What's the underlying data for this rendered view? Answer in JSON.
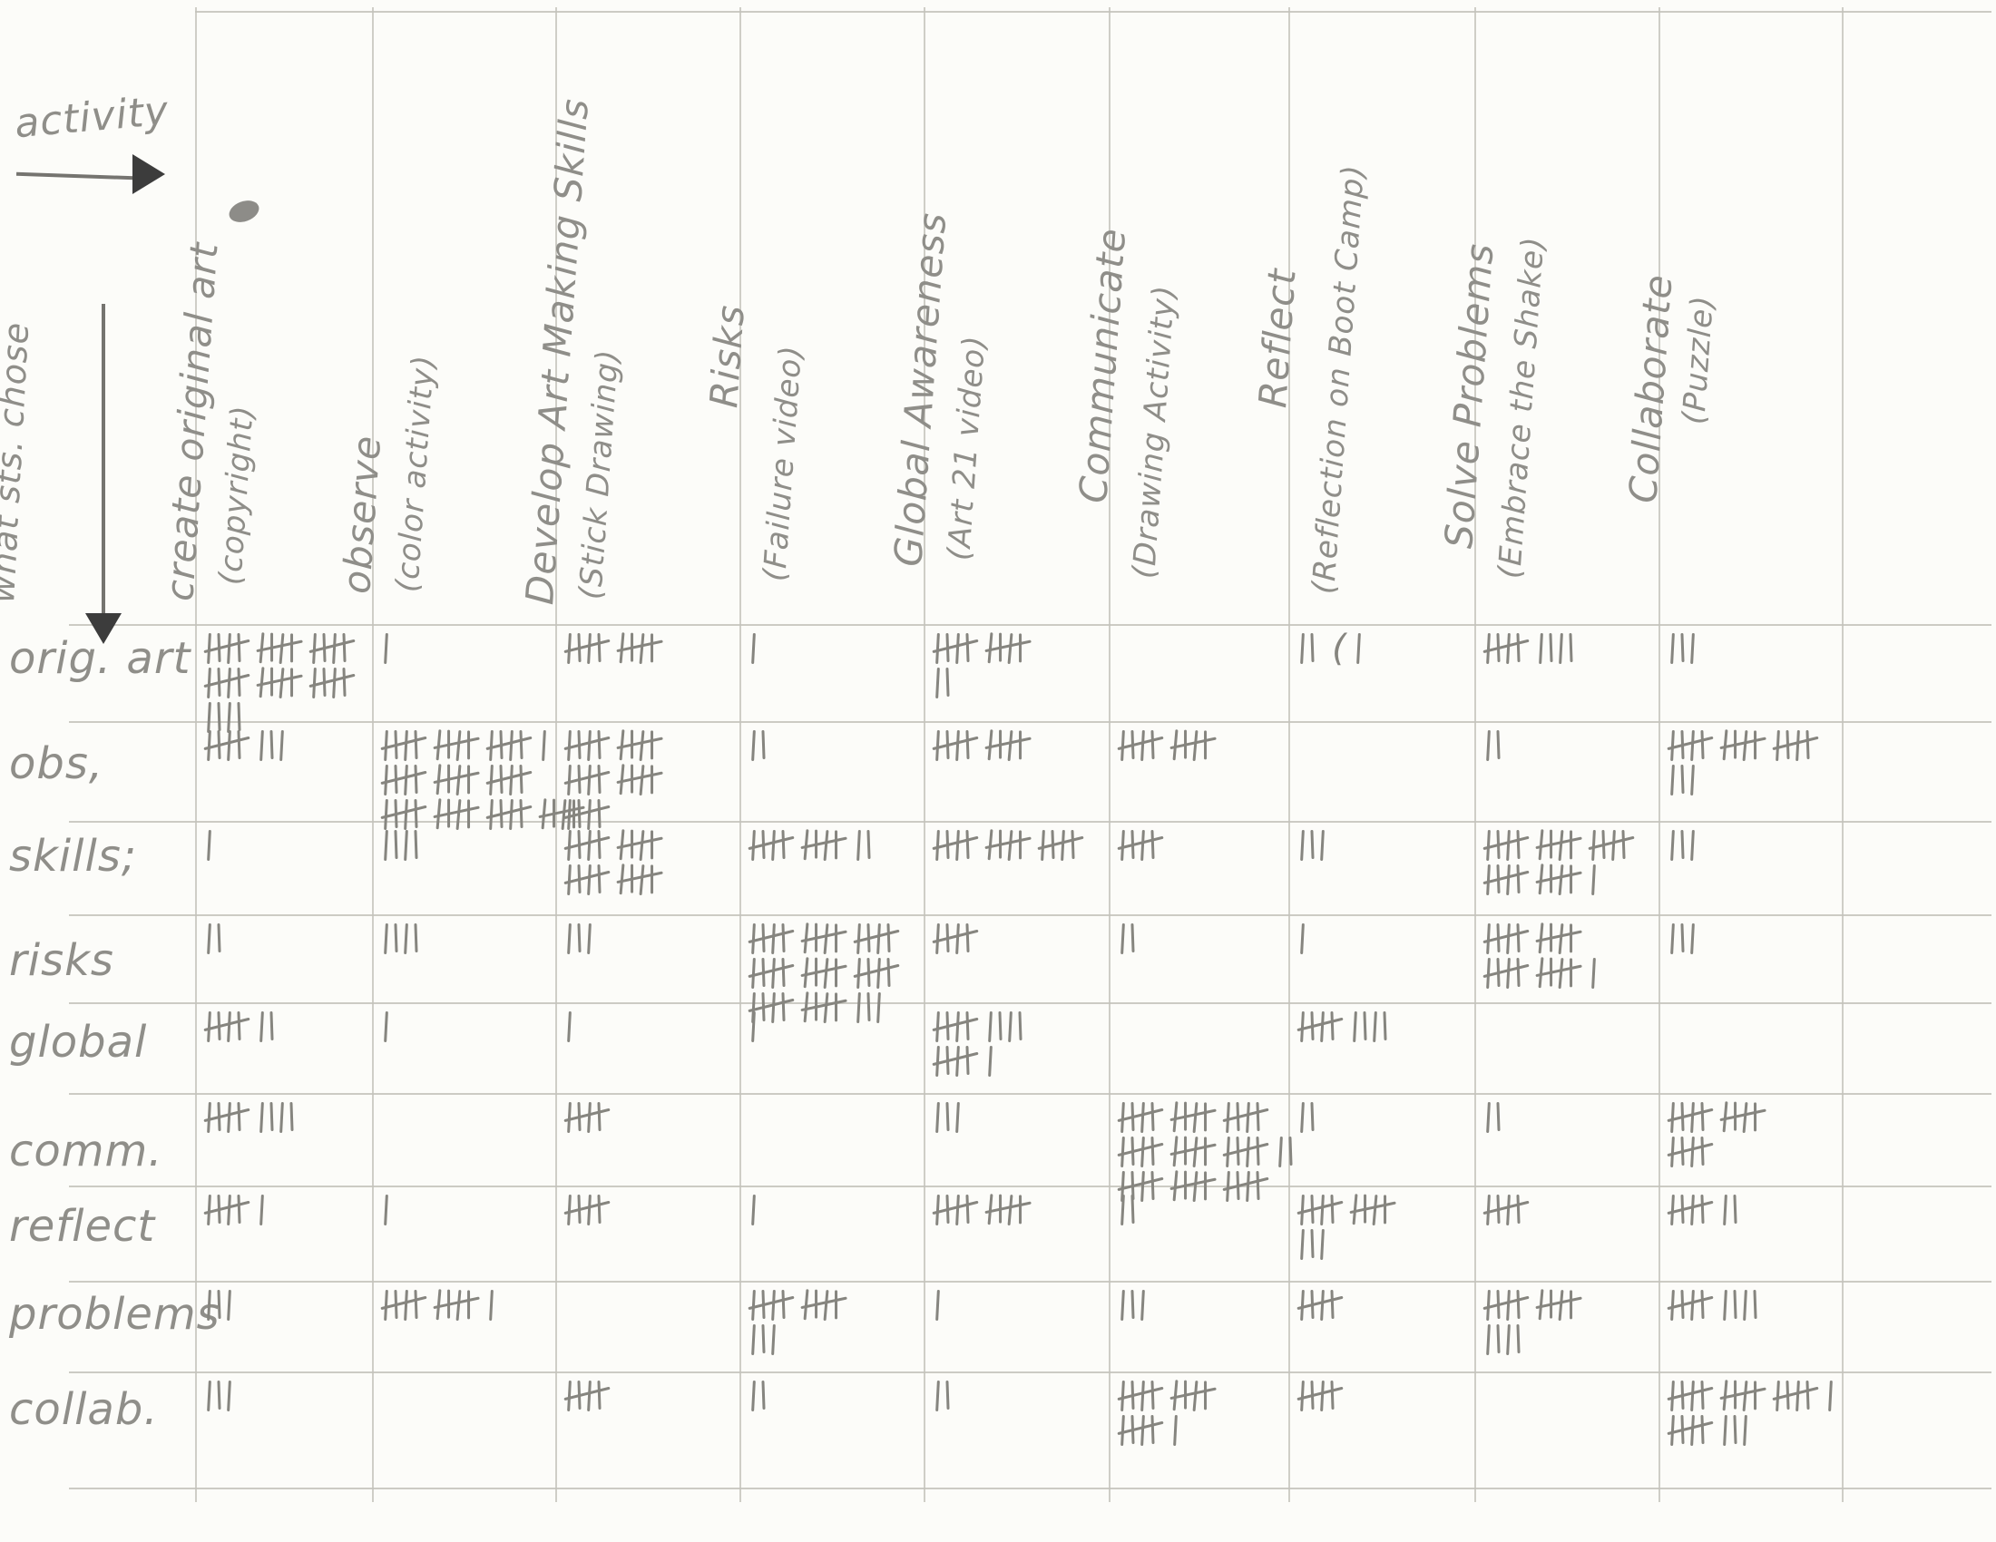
{
  "annotations": {
    "activity_label": "activity",
    "rows_axis_label": "what sts. chose"
  },
  "colors": {
    "paper": "#fcfcf9",
    "pencil_ink": "#8f8e89",
    "tally_ink": "#86857f",
    "grid_line": "#c9c8c1",
    "arrow_dark": "#3c3c3c"
  },
  "table": {
    "columns": [
      {
        "label": "create original art",
        "sub": "(copyright)"
      },
      {
        "label": "observe",
        "sub": "(color activity)"
      },
      {
        "label": "Develop Art Making Skills",
        "sub": "(Stick Drawing)"
      },
      {
        "label": "Risks",
        "sub": "(Failure video)"
      },
      {
        "label": "Global Awareness",
        "sub": "(Art 21 video)"
      },
      {
        "label": "Communicate",
        "sub": "(Drawing Activity)"
      },
      {
        "label": "Reflect",
        "sub": "(Reflection on Boot Camp)"
      },
      {
        "label": "Solve Problems",
        "sub": "(Embrace the Shake)"
      },
      {
        "label": "Collaborate",
        "sub": "(Puzzle)"
      }
    ],
    "rows": [
      {
        "label": "orig. art",
        "tallies": [
          "5 5 5|5 5 5|4",
          "1",
          "5 5",
          "1",
          "5 5|2",
          "",
          "2 ( 1",
          "5 4",
          "3"
        ],
        "counts": [
          34,
          1,
          10,
          1,
          12,
          0,
          4,
          9,
          3
        ]
      },
      {
        "label": "obs,",
        "tallies": [
          "5 3",
          "5 5 5 1|5 5 5|5 5 5 5",
          "5 5|5 5|5",
          "2",
          "5 5",
          "5 5",
          "",
          "2",
          "5 5 5|3"
        ],
        "counts": [
          8,
          51,
          25,
          2,
          10,
          10,
          0,
          2,
          18
        ]
      },
      {
        "label": "skills;",
        "tallies": [
          "1",
          "4",
          "5 5|5 5",
          "5 5 2",
          "5 5 5",
          "5",
          "3",
          "5 5 5|5 5 1",
          "3"
        ],
        "counts": [
          1,
          4,
          20,
          12,
          15,
          5,
          3,
          26,
          3
        ]
      },
      {
        "label": "risks",
        "tallies": [
          "2",
          "4",
          "3",
          "5 5 5|5 5 5|5 5 3",
          "5",
          "2",
          "1",
          "5 5|5 5 1",
          "3"
        ],
        "counts": [
          2,
          4,
          3,
          43,
          5,
          2,
          1,
          21,
          3
        ]
      },
      {
        "label": "global",
        "tallies": [
          "5 2",
          "1",
          "1",
          "1",
          "5 4|5 1",
          "",
          "5 4",
          "",
          ""
        ],
        "counts": [
          7,
          1,
          1,
          1,
          15,
          0,
          9,
          0,
          0
        ]
      },
      {
        "label": "comm.",
        "tallies": [
          "5 4",
          "",
          "5",
          "",
          "3",
          "5 5 5|5 5 5 2|5 5 5",
          "2",
          "2",
          "5 5|5"
        ],
        "counts": [
          9,
          0,
          5,
          0,
          3,
          47,
          2,
          2,
          15
        ]
      },
      {
        "label": "reflect",
        "tallies": [
          "5 1",
          "1",
          "5",
          "1",
          "5 5",
          "2",
          "5 5|3",
          "5",
          "5 2"
        ],
        "counts": [
          6,
          1,
          5,
          1,
          10,
          2,
          13,
          5,
          7
        ]
      },
      {
        "label": "problems",
        "tallies": [
          "3",
          "5 5 1",
          "",
          "5 5|3",
          "1",
          "3",
          "5",
          "5 5|4",
          "5 4"
        ],
        "counts": [
          3,
          11,
          0,
          13,
          1,
          3,
          5,
          14,
          9
        ]
      },
      {
        "label": "collab.",
        "tallies": [
          "3",
          "",
          "5",
          "2",
          "2",
          "5 5|5 1",
          "5",
          "",
          "5 5 5 1|5 3"
        ],
        "counts": [
          3,
          0,
          5,
          2,
          2,
          16,
          5,
          0,
          24
        ]
      }
    ]
  },
  "chart_data": {
    "type": "table",
    "x_label": "activity",
    "y_label": "what sts. chose",
    "columns": [
      "create original art (copyright)",
      "observe (color activity)",
      "Develop Art Making Skills (Stick Drawing)",
      "Risks (Failure video)",
      "Global Awareness (Art 21 video)",
      "Communicate (Drawing Activity)",
      "Reflect (Reflection on Boot Camp)",
      "Solve Problems (Embrace the Shake)",
      "Collaborate (Puzzle)"
    ],
    "rows": [
      "orig. art",
      "obs,",
      "skills;",
      "risks",
      "global",
      "comm.",
      "reflect",
      "problems",
      "collab."
    ],
    "values": [
      [
        34,
        1,
        10,
        1,
        12,
        0,
        4,
        9,
        3
      ],
      [
        8,
        51,
        25,
        2,
        10,
        10,
        0,
        2,
        18
      ],
      [
        1,
        4,
        20,
        12,
        15,
        5,
        3,
        26,
        3
      ],
      [
        2,
        4,
        3,
        43,
        5,
        2,
        1,
        21,
        3
      ],
      [
        7,
        1,
        1,
        1,
        15,
        0,
        9,
        0,
        0
      ],
      [
        9,
        0,
        5,
        0,
        3,
        47,
        2,
        2,
        15
      ],
      [
        6,
        1,
        5,
        1,
        10,
        2,
        13,
        5,
        7
      ],
      [
        3,
        11,
        0,
        13,
        1,
        3,
        5,
        14,
        9
      ],
      [
        3,
        0,
        5,
        2,
        2,
        16,
        5,
        0,
        24
      ]
    ]
  }
}
